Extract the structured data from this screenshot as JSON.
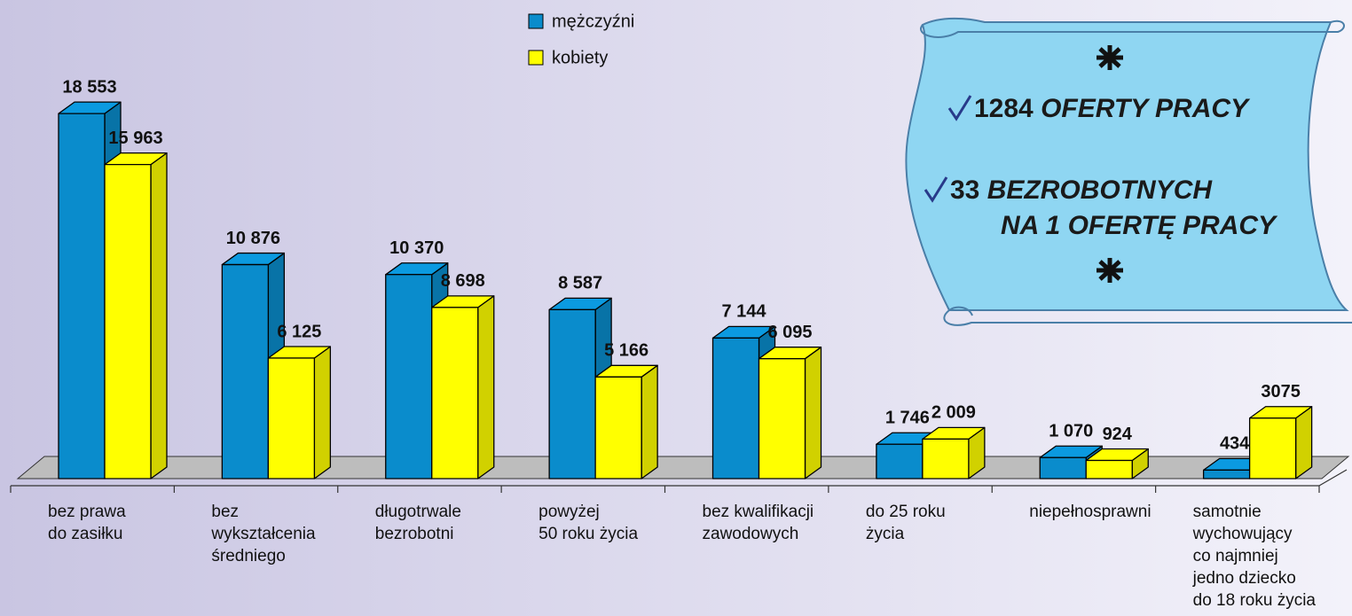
{
  "chart_data": {
    "type": "bar3d",
    "categories": [
      [
        "bez prawa",
        "do zasiłku"
      ],
      [
        "bez",
        "wykształcenia",
        "średniego"
      ],
      [
        "długotrwale",
        "bezrobotni"
      ],
      [
        "powyżej",
        "50 roku życia"
      ],
      [
        "bez kwalifikacji",
        "zawodowych"
      ],
      [
        "do 25 roku",
        "życia"
      ],
      [
        "niepełnosprawni"
      ],
      [
        "samotnie",
        "wychowujący",
        "co najmniej",
        "jedno dziecko",
        "do 18 roku życia"
      ]
    ],
    "series": [
      {
        "name": "mężczyźni",
        "color": "#0a8ccc",
        "values": [
          18553,
          10876,
          10370,
          8587,
          7144,
          1746,
          1070,
          434
        ],
        "value_labels": [
          "18 553",
          "10 876",
          "10 370",
          "8 587",
          "7 144",
          "1 746",
          "1 070",
          "434"
        ]
      },
      {
        "name": "kobiety",
        "color": "#ffff00",
        "values": [
          15963,
          6125,
          8698,
          5166,
          6095,
          2009,
          924,
          3075
        ],
        "value_labels": [
          "15 963",
          "6 125",
          "8 698",
          "5 166",
          "6 095",
          "2 009",
          "924",
          "3075"
        ]
      }
    ],
    "ylim": [
      0,
      20000
    ],
    "annotation": {
      "offers_count": "1284",
      "offers_text": "OFERTY PRACY",
      "ratio_count": "33",
      "ratio_text_1": "BEZROBOTNYCH",
      "ratio_text_2": "NA 1 OFERTĘ PRACY"
    }
  }
}
